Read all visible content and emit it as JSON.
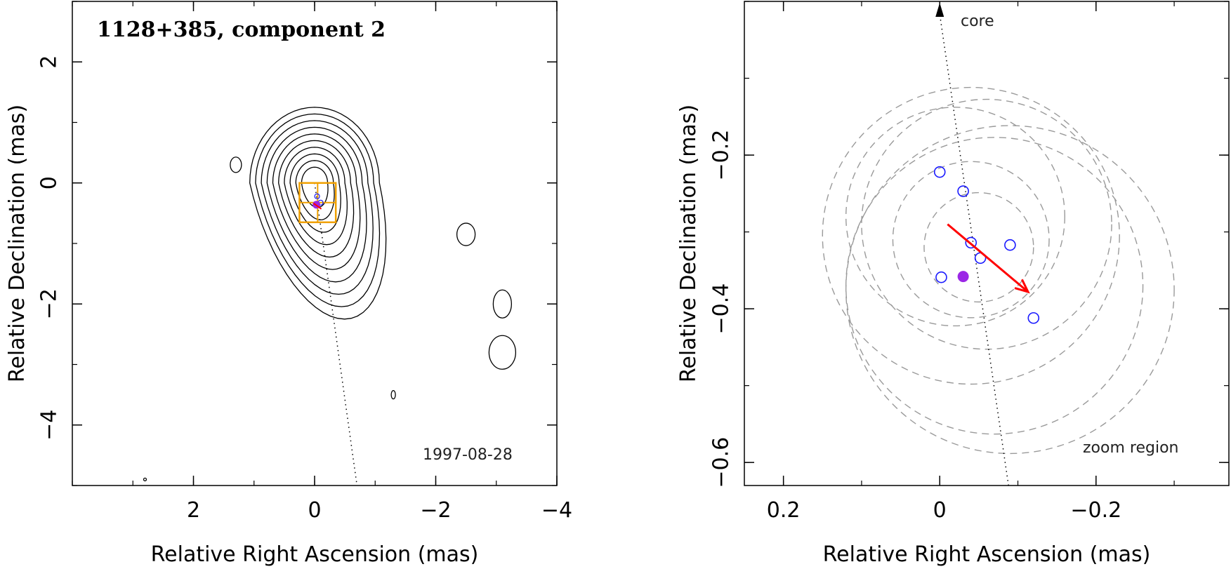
{
  "chart_data": [
    {
      "type": "contour",
      "title": "1128+385, component 2",
      "date": "1997-08-28",
      "xlabel": "Relative Right Ascension (mas)",
      "ylabel": "Relative Declination (mas)",
      "xlim": [
        4.0,
        -4.0
      ],
      "ylim": [
        -5.0,
        3.0
      ],
      "xticks": [
        2,
        0,
        -2,
        -4
      ],
      "xtick_labels": [
        "2",
        "0",
        "−2",
        "−4"
      ],
      "yticks": [
        2,
        0,
        -2,
        -4
      ],
      "ytick_labels": [
        "2",
        "0",
        "−2",
        "−4"
      ],
      "contour_levels": 10,
      "peak": {
        "x": 0.0,
        "y": 0.0
      },
      "zoom_box": {
        "x_range": [
          0.25,
          -0.35
        ],
        "y_range": [
          -0.65,
          0.0
        ]
      },
      "component_position": {
        "x": -0.03,
        "y": -0.36
      },
      "jet_axis": {
        "from": {
          "x": 0.0,
          "y": 0.0
        },
        "to": {
          "x": -0.7,
          "y": -5.0
        }
      },
      "colors": {
        "contour": "#000000",
        "zoom_box": "#f0a000",
        "marker": "#9b27e6",
        "circle": "#1a1aff",
        "arrow": "#ff0000"
      }
    },
    {
      "type": "scatter",
      "label_core": "core",
      "label_zoom": "zoom region",
      "xlabel": "Relative Right Ascension (mas)",
      "ylabel": "Relative Declination (mas)",
      "xlim": [
        0.25,
        -0.37
      ],
      "ylim": [
        -0.63,
        0.0
      ],
      "xticks": [
        0.2,
        0,
        -0.2
      ],
      "xtick_labels": [
        "0.2",
        "0",
        "−0.2"
      ],
      "yticks": [
        -0.2,
        -0.4,
        -0.6
      ],
      "ytick_labels": [
        "−0.2",
        "−0.4",
        "−0.6"
      ],
      "epoch_positions": [
        {
          "x": 0.0,
          "y": -0.222
        },
        {
          "x": -0.03,
          "y": -0.247
        },
        {
          "x": -0.04,
          "y": -0.314
        },
        {
          "x": -0.09,
          "y": -0.317
        },
        {
          "x": -0.052,
          "y": -0.334
        },
        {
          "x": -0.002,
          "y": -0.359
        },
        {
          "x": -0.12,
          "y": -0.412
        }
      ],
      "mean_position": {
        "x": -0.03,
        "y": -0.358
      },
      "error_circles": [
        {
          "x": -0.04,
          "y": -0.305,
          "r": 0.19
        },
        {
          "x": -0.04,
          "y": -0.31,
          "r": 0.1
        },
        {
          "x": -0.05,
          "y": -0.32,
          "r": 0.07
        },
        {
          "x": -0.02,
          "y": -0.28,
          "r": 0.14
        },
        {
          "x": -0.06,
          "y": -0.29,
          "r": 0.16
        },
        {
          "x": -0.07,
          "y": -0.37,
          "r": 0.19
        },
        {
          "x": -0.09,
          "y": -0.375,
          "r": 0.21
        }
      ],
      "motion_arrow": {
        "from": {
          "x": -0.01,
          "y": -0.29
        },
        "to": {
          "x": -0.113,
          "y": -0.378
        }
      },
      "jet_axis": {
        "from": {
          "x": -0.088,
          "y": -0.63
        },
        "to": {
          "x": 0.0,
          "y": 0.0
        }
      },
      "colors": {
        "circle_marker": "#1a1aff",
        "mean_marker": "#9b27e6",
        "arrow": "#ff0000",
        "error_circle": "#9a9a9a",
        "axis_line": "#000000"
      }
    }
  ]
}
